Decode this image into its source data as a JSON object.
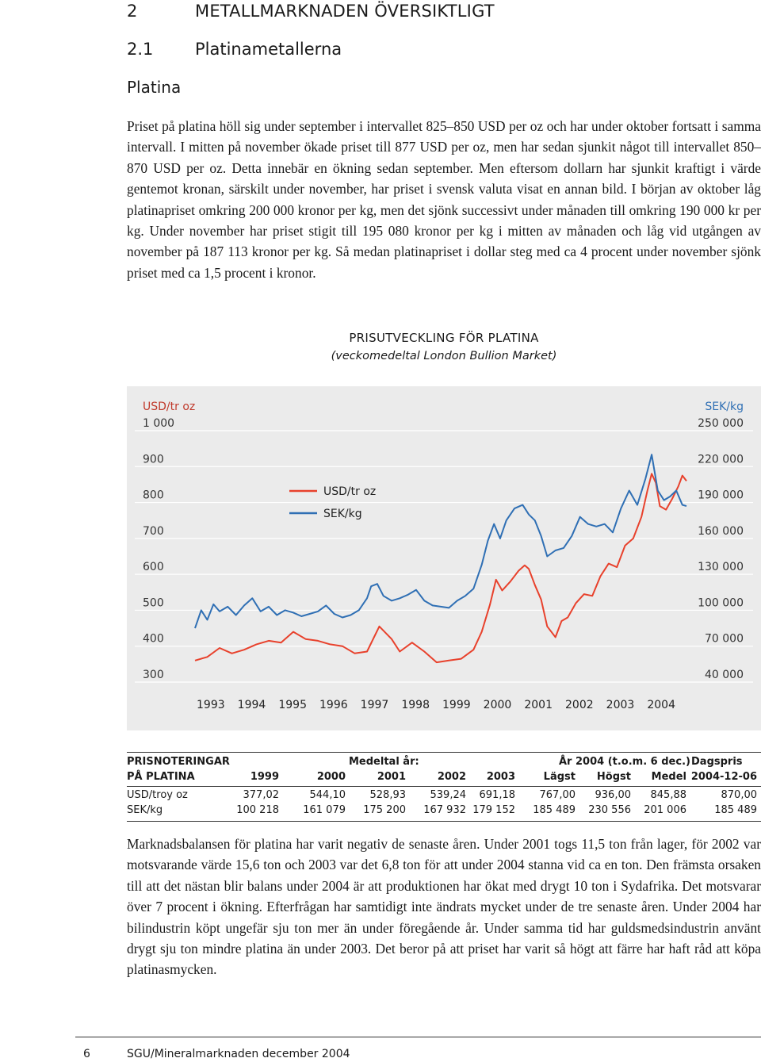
{
  "heading1": {
    "number": "2",
    "title": "METALLMARKNADEN ÖVERSIKTLIGT"
  },
  "heading2": {
    "number": "2.1",
    "title": "Platinametallerna"
  },
  "heading3": "Platina",
  "paragraph1": "Priset på platina höll sig under september i intervallet 825–850 USD per oz och har under oktober fortsatt i samma intervall. I mitten på november ökade priset till 877 USD per oz, men har sedan sjunkit något till intervallet 850–870 USD per oz. Detta innebär en ökning sedan september. Men eftersom dollarn har sjunkit kraftigt i värde gentemot kronan, särskilt under november, har priset i svensk valuta visat en annan bild. I början av oktober låg platinapriset omkring 200 000 kronor per kg, men det sjönk successivt under månaden till omkring 190 000 kr per kg. Under november har priset stigit till 195 080 kronor per kg i mitten av månaden och låg vid utgången av november på 187 113 kronor per kg. Så medan platinapriset i dollar steg med ca 4 procent under november sjönk priset med ca 1,5 procent i kronor.",
  "chart_data": {
    "type": "line",
    "title": "PRISUTVECKLING FÖR PLATINA",
    "subtitle": "(veckomedeltal London Bullion Market)",
    "left_axis": {
      "label": "USD/tr oz",
      "ticks": [
        "1 000",
        "900",
        "800",
        "700",
        "600",
        "500",
        "400",
        "300"
      ],
      "range": [
        300,
        1000
      ]
    },
    "right_axis": {
      "label": "SEK/kg",
      "ticks": [
        "250 000",
        "220 000",
        "190 000",
        "160 000",
        "130 000",
        "100 000",
        "70 000",
        "40 000"
      ],
      "range": [
        40000,
        250000
      ]
    },
    "x_ticks": [
      "1993",
      "1994",
      "1995",
      "1996",
      "1997",
      "1998",
      "1999",
      "2000",
      "2001",
      "2002",
      "2003",
      "2004"
    ],
    "x_range": [
      1993,
      2005
    ],
    "grid": "horizontal",
    "legend": "top-left inside plot",
    "series": [
      {
        "name": "USD/tr oz",
        "color": "#e8412c",
        "axis": "left",
        "points": [
          [
            1993.0,
            360
          ],
          [
            1993.3,
            370
          ],
          [
            1993.6,
            395
          ],
          [
            1993.9,
            380
          ],
          [
            1994.2,
            390
          ],
          [
            1994.5,
            405
          ],
          [
            1994.8,
            415
          ],
          [
            1995.1,
            410
          ],
          [
            1995.4,
            440
          ],
          [
            1995.7,
            420
          ],
          [
            1996.0,
            415
          ],
          [
            1996.3,
            405
          ],
          [
            1996.6,
            400
          ],
          [
            1996.9,
            380
          ],
          [
            1997.2,
            385
          ],
          [
            1997.5,
            455
          ],
          [
            1997.8,
            420
          ],
          [
            1998.0,
            385
          ],
          [
            1998.3,
            410
          ],
          [
            1998.6,
            385
          ],
          [
            1998.9,
            355
          ],
          [
            1999.2,
            360
          ],
          [
            1999.5,
            365
          ],
          [
            1999.8,
            390
          ],
          [
            2000.0,
            440
          ],
          [
            2000.2,
            515
          ],
          [
            2000.35,
            585
          ],
          [
            2000.5,
            555
          ],
          [
            2000.7,
            580
          ],
          [
            2000.9,
            610
          ],
          [
            2001.05,
            625
          ],
          [
            2001.15,
            615
          ],
          [
            2001.3,
            570
          ],
          [
            2001.45,
            530
          ],
          [
            2001.6,
            455
          ],
          [
            2001.8,
            425
          ],
          [
            2001.95,
            470
          ],
          [
            2002.1,
            480
          ],
          [
            2002.3,
            520
          ],
          [
            2002.5,
            545
          ],
          [
            2002.7,
            540
          ],
          [
            2002.9,
            595
          ],
          [
            2003.1,
            630
          ],
          [
            2003.3,
            620
          ],
          [
            2003.5,
            680
          ],
          [
            2003.7,
            700
          ],
          [
            2003.9,
            760
          ],
          [
            2004.05,
            835
          ],
          [
            2004.15,
            880
          ],
          [
            2004.25,
            855
          ],
          [
            2004.35,
            790
          ],
          [
            2004.5,
            780
          ],
          [
            2004.65,
            810
          ],
          [
            2004.8,
            845
          ],
          [
            2004.9,
            875
          ],
          [
            2005.0,
            860
          ]
        ]
      },
      {
        "name": "SEK/kg",
        "color": "#2f6fb4",
        "axis": "right",
        "points": [
          [
            1993.0,
            85000
          ],
          [
            1993.15,
            100000
          ],
          [
            1993.3,
            92000
          ],
          [
            1993.45,
            105000
          ],
          [
            1993.6,
            99000
          ],
          [
            1993.8,
            103000
          ],
          [
            1994.0,
            96000
          ],
          [
            1994.2,
            104000
          ],
          [
            1994.4,
            110000
          ],
          [
            1994.6,
            99000
          ],
          [
            1994.8,
            103000
          ],
          [
            1995.0,
            96000
          ],
          [
            1995.2,
            100000
          ],
          [
            1995.4,
            98000
          ],
          [
            1995.6,
            95000
          ],
          [
            1995.8,
            97000
          ],
          [
            1996.0,
            99000
          ],
          [
            1996.2,
            104000
          ],
          [
            1996.4,
            97000
          ],
          [
            1996.6,
            94000
          ],
          [
            1996.8,
            96000
          ],
          [
            1997.0,
            100000
          ],
          [
            1997.2,
            110000
          ],
          [
            1997.3,
            120000
          ],
          [
            1997.45,
            122000
          ],
          [
            1997.6,
            112000
          ],
          [
            1997.8,
            108000
          ],
          [
            1998.0,
            110000
          ],
          [
            1998.2,
            113000
          ],
          [
            1998.4,
            117000
          ],
          [
            1998.6,
            108000
          ],
          [
            1998.8,
            104000
          ],
          [
            1999.0,
            103000
          ],
          [
            1999.2,
            102000
          ],
          [
            1999.4,
            108000
          ],
          [
            1999.6,
            112000
          ],
          [
            1999.8,
            118000
          ],
          [
            2000.0,
            138000
          ],
          [
            2000.15,
            158000
          ],
          [
            2000.3,
            172000
          ],
          [
            2000.45,
            160000
          ],
          [
            2000.6,
            175000
          ],
          [
            2000.8,
            185000
          ],
          [
            2001.0,
            188000
          ],
          [
            2001.15,
            180000
          ],
          [
            2001.3,
            175000
          ],
          [
            2001.45,
            162000
          ],
          [
            2001.6,
            145000
          ],
          [
            2001.8,
            150000
          ],
          [
            2002.0,
            152000
          ],
          [
            2002.2,
            162000
          ],
          [
            2002.4,
            178000
          ],
          [
            2002.6,
            172000
          ],
          [
            2002.8,
            170000
          ],
          [
            2003.0,
            172000
          ],
          [
            2003.2,
            165000
          ],
          [
            2003.4,
            185000
          ],
          [
            2003.6,
            200000
          ],
          [
            2003.8,
            188000
          ],
          [
            2004.0,
            210000
          ],
          [
            2004.15,
            230000
          ],
          [
            2004.3,
            200000
          ],
          [
            2004.45,
            192000
          ],
          [
            2004.6,
            195000
          ],
          [
            2004.75,
            200000
          ],
          [
            2004.9,
            188000
          ],
          [
            2005.0,
            187000
          ]
        ]
      }
    ]
  },
  "table": {
    "header_row1": {
      "label": "PRISNOTERINGAR",
      "group1": "Medeltal år:",
      "group2": "År 2004 (t.o.m. 6 dec.)",
      "group3": "Dagspris"
    },
    "header_row2": {
      "label": "PÅ PLATINA",
      "cols": [
        "1999",
        "2000",
        "2001",
        "2002",
        "2003",
        "Lägst",
        "Högst",
        "Medel",
        "2004-12-06"
      ]
    },
    "rows": [
      {
        "label": "USD/troy oz",
        "values": [
          "377,02",
          "544,10",
          "528,93",
          "539,24",
          "691,18",
          "767,00",
          "936,00",
          "845,88",
          "870,00"
        ]
      },
      {
        "label": "SEK/kg",
        "values": [
          "100 218",
          "161 079",
          "175 200",
          "167 932",
          "179 152",
          "185 489",
          "230 556",
          "201 006",
          "185 489"
        ]
      }
    ]
  },
  "paragraph2": "Marknadsbalansen för platina har varit negativ de senaste åren. Under 2001 togs 11,5 ton från lager, för 2002 var motsvarande värde 15,6 ton och 2003 var det 6,8 ton för att under 2004 stanna vid ca en ton. Den främsta orsaken till att det nästan blir balans under 2004 är att produktionen har ökat med drygt 10 ton i Sydafrika. Det motsvarar över 7 procent i ökning. Efterfrågan har samtidigt inte ändrats mycket under de tre senaste åren. Under 2004 har bilindustrin köpt ungefär sju ton mer än under föregående år. Under samma tid har guldsmedsindustrin använt drygt sju ton mindre platina än under 2003. Det beror på att priset har varit så högt att färre har haft råd att köpa platinasmycken.",
  "footer": {
    "page": "6",
    "publication": "SGU/Mineralmarknaden december 2004"
  }
}
